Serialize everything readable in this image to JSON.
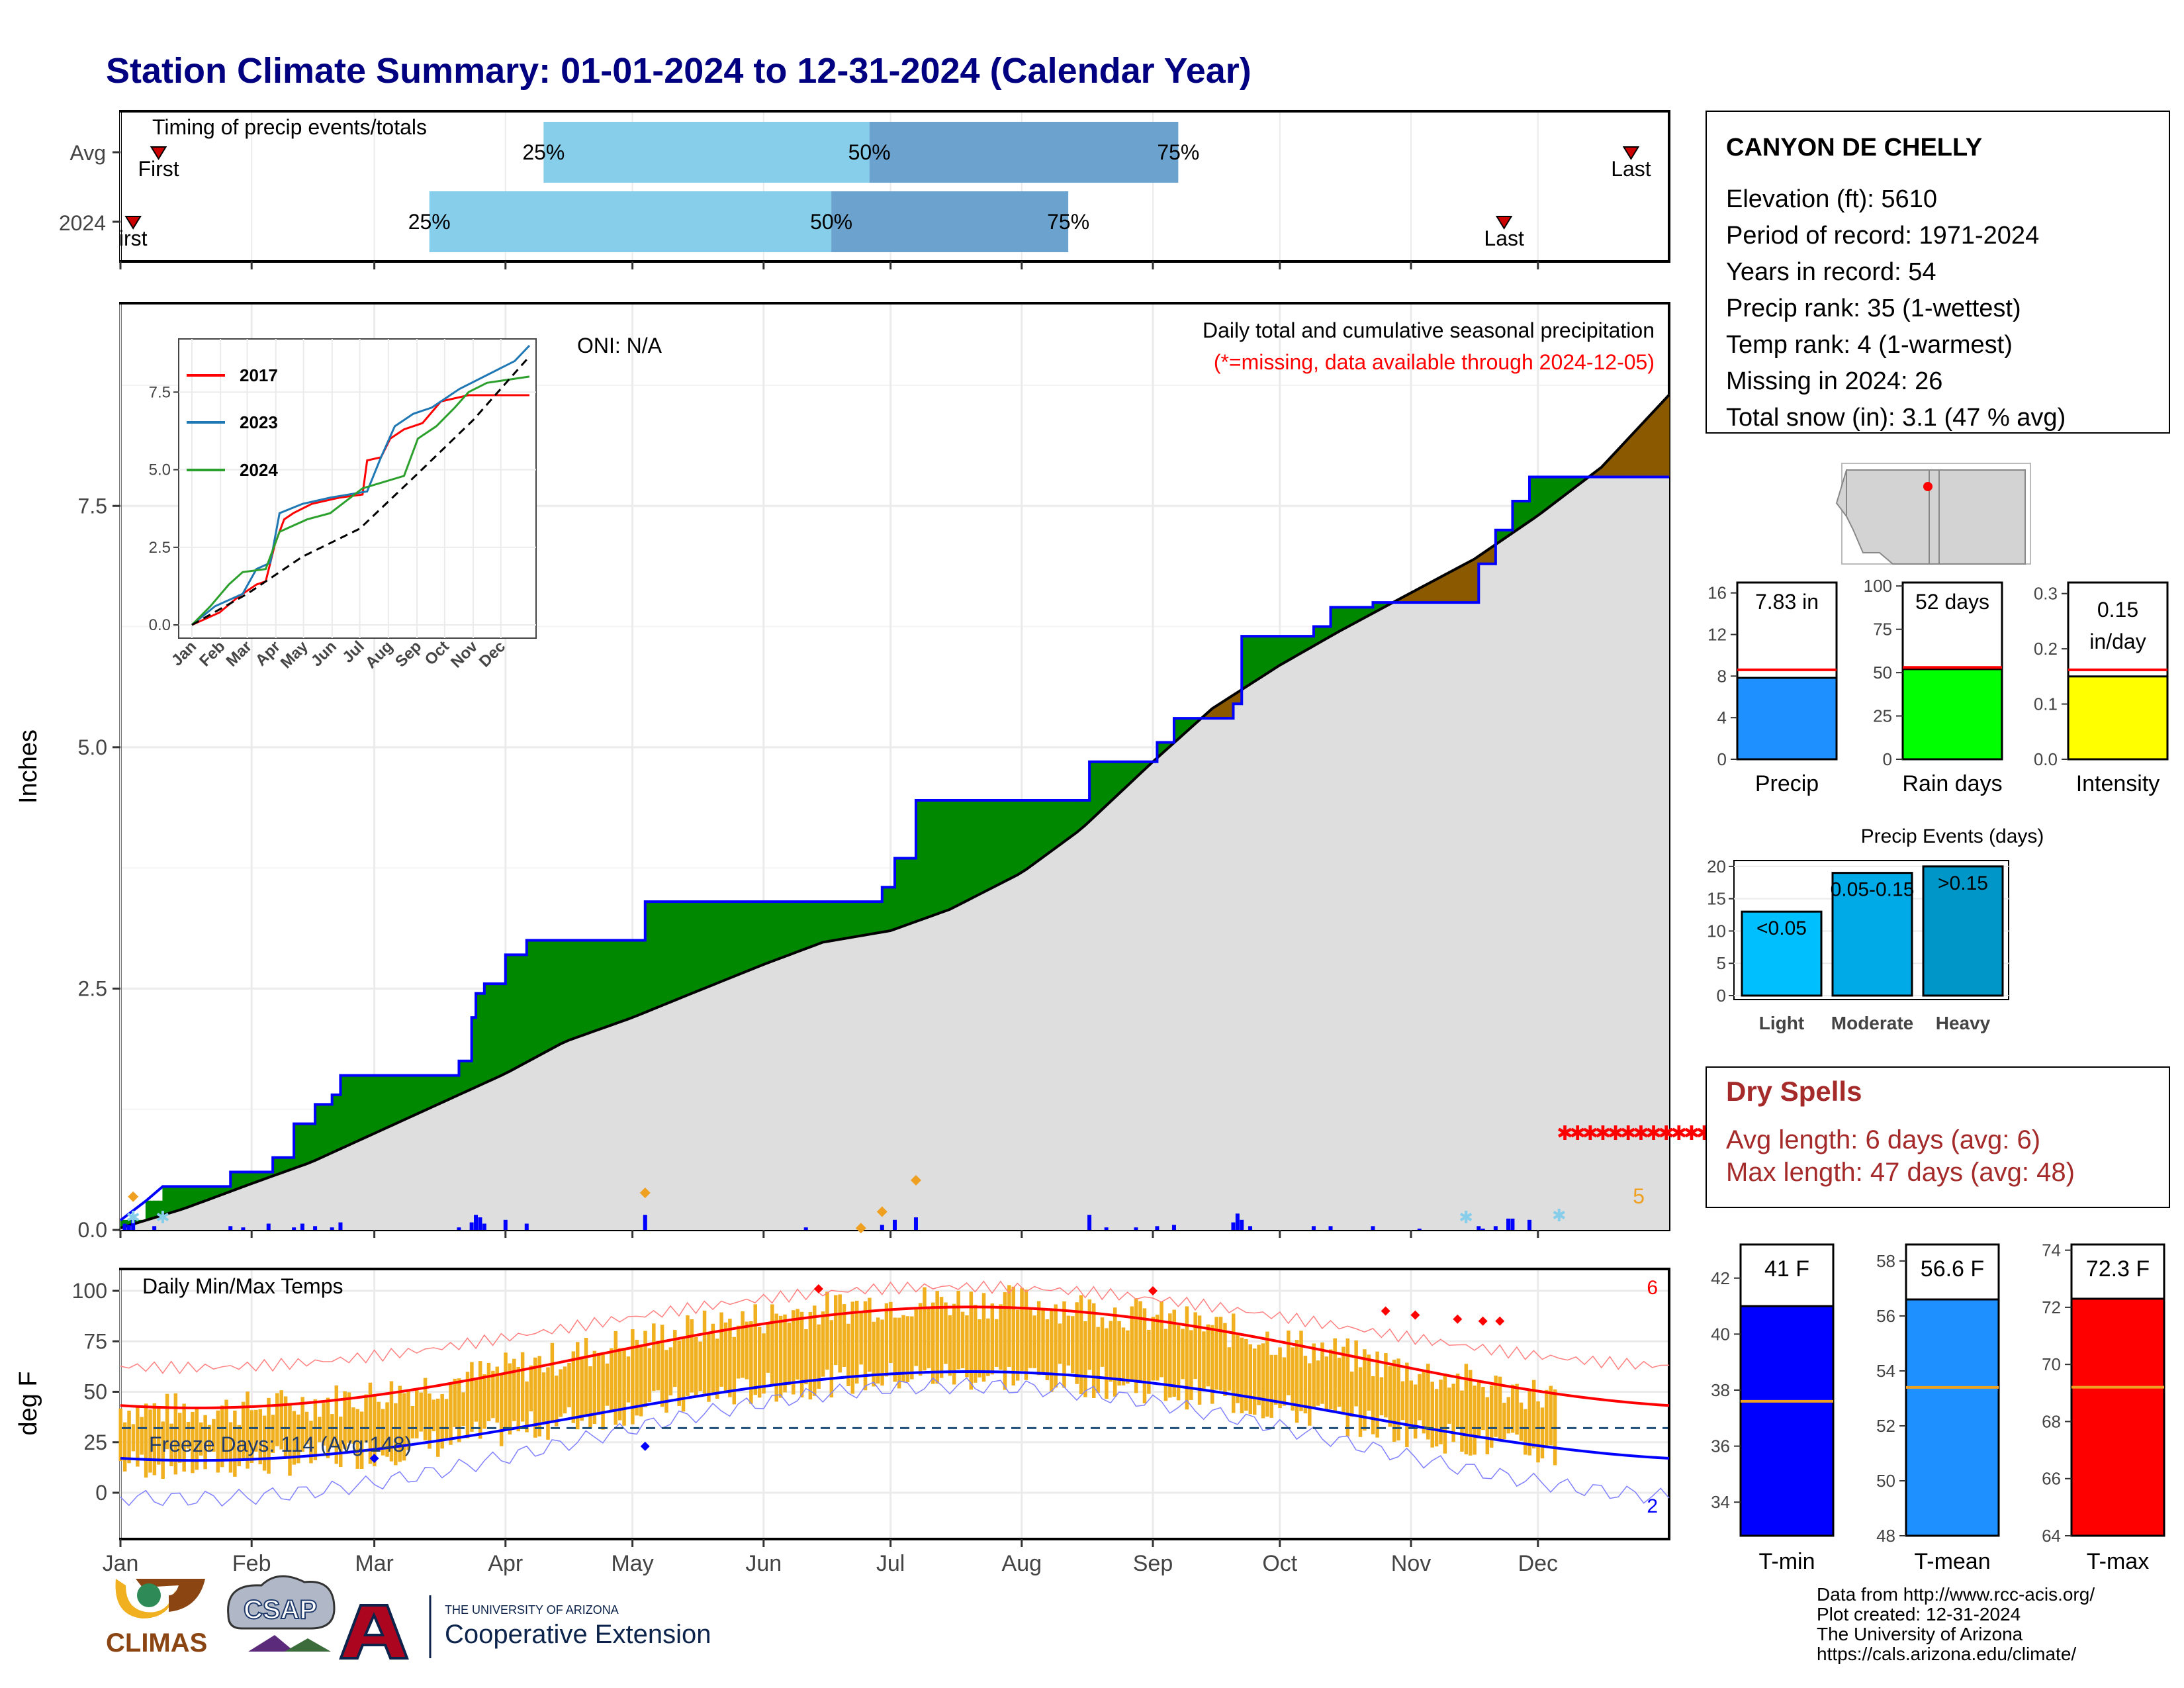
{
  "title": "Station Climate Summary: 01-01-2024 to 12-31-2024 (Calendar Year)",
  "months": [
    "Jan",
    "Feb",
    "Mar",
    "Apr",
    "May",
    "Jun",
    "Jul",
    "Aug",
    "Sep",
    "Oct",
    "Nov",
    "Dec"
  ],
  "colors": {
    "title": "#000080",
    "green": "#008800",
    "brown": "#8B5A00",
    "grey": "#DEDEDE",
    "blue": "#0000FF",
    "orange": "#F0B020",
    "red": "#FF0000",
    "lightblue": "#87CEEB",
    "midblue": "#6BA3CE",
    "dryred": "#A52A2A"
  },
  "timing": {
    "title": "Timing of precip events/totals",
    "rows": [
      {
        "label": "Avg",
        "first_doy": 9,
        "last_doy": 357,
        "p25": 100,
        "p50": 177,
        "p75": 250,
        "first_text": "First",
        "last_text": "Last"
      },
      {
        "label": "2024",
        "first_doy": 3,
        "last_doy": 327,
        "p25": 73,
        "p50": 168,
        "p75": 224,
        "first_text": "irst",
        "last_text": "Last"
      }
    ],
    "pct_labels": [
      "25%",
      "50%",
      "75%"
    ]
  },
  "station": {
    "name": "CANYON DE CHELLY",
    "lines": [
      "Elevation (ft): 5610",
      "Period of record: 1971-2024",
      "Years in record: 54",
      "Precip rank: 35 (1-wettest)",
      "Temp rank: 4 (1-warmest)",
      "Missing in 2024: 26",
      "Total snow (in): 3.1 (47 % avg)"
    ]
  },
  "precip_panel": {
    "ylabel": "Inches",
    "oni": "ONI: N/A",
    "header": "Daily total and cumulative seasonal precipitation",
    "missing_note": "(*=missing, data available through 2024-12-05)",
    "corner_number": "5"
  },
  "inset": {
    "legend": [
      {
        "name": "2017",
        "color": "#FF0000"
      },
      {
        "name": "2023",
        "color": "#1F77B4"
      },
      {
        "name": "2024",
        "color": "#2CA02C"
      }
    ],
    "yticks": [
      "0.0",
      "2.5",
      "5.0",
      "7.5"
    ]
  },
  "mini_bars": [
    {
      "label": "Precip",
      "value_text": "7.83 in",
      "value": 7.83,
      "avg": 8.6,
      "ymax": 17,
      "ticks": [
        0,
        4,
        8,
        12,
        16
      ],
      "color": "#1E90FF"
    },
    {
      "label": "Rain days",
      "value_text": "52 days",
      "value": 52,
      "avg": 53,
      "ymax": 102,
      "ticks": [
        0,
        25,
        50,
        75,
        100
      ],
      "color": "#00FF00"
    },
    {
      "label": "Intensity",
      "value_text": "0.15",
      "value_text2": "in/day",
      "value": 0.15,
      "avg": 0.162,
      "ymax": 0.32,
      "ticks": [
        "0.0",
        "0.1",
        "0.2",
        "0.3"
      ],
      "color": "#FFFF00"
    }
  ],
  "events": {
    "title": "Precip Events (days)",
    "bars": [
      {
        "label": "Light",
        "text": "<0.05",
        "value": 13,
        "color": "#00BFFF"
      },
      {
        "label": "Moderate",
        "text": "0.05-0.15",
        "value": 19,
        "color": "#00AAE6"
      },
      {
        "label": "Heavy",
        "text": ">0.15",
        "value": 20,
        "color": "#0096C8"
      }
    ],
    "yticks": [
      0,
      5,
      10,
      15,
      20
    ]
  },
  "dry_spells": {
    "title": "Dry Spells",
    "avg_line": "Avg length: 6 days (avg: 6)",
    "max_line": "Max length: 47 days (avg: 48)"
  },
  "temp_panel": {
    "ylabel": "deg F",
    "title": "Daily Min/Max Temps",
    "freeze": "Freeze Days: 114 (Avg:148)",
    "corner_top": "6",
    "corner_bottom": "2",
    "yticks": [
      0,
      25,
      50,
      75,
      100
    ]
  },
  "temp_bars": [
    {
      "label": "T-min",
      "value_text": "41 F",
      "value": 41,
      "avg": 37.6,
      "ymin": 32.8,
      "ymax": 43.2,
      "ticks": [
        34,
        36,
        38,
        40,
        42
      ],
      "color": "#0000FF"
    },
    {
      "label": "T-mean",
      "value_text": "56.6 F",
      "value": 56.6,
      "avg": 53.4,
      "ymin": 48,
      "ymax": 58.6,
      "ticks": [
        48,
        50,
        52,
        54,
        56,
        58
      ],
      "color": "#1E90FF"
    },
    {
      "label": "T-max",
      "value_text": "72.3 F",
      "value": 72.3,
      "avg": 69.2,
      "ymin": 64,
      "ymax": 74.2,
      "ticks": [
        64,
        66,
        68,
        70,
        72,
        74
      ],
      "color": "#FF0000"
    }
  ],
  "chart_data": {
    "type": "area",
    "title": "Daily total and cumulative seasonal precipitation",
    "ylabel": "Inches",
    "ylim": [
      0,
      9.6
    ],
    "x": [
      "Jan 1",
      "Jan 15",
      "Feb 1",
      "Feb 15",
      "Mar 1",
      "Mar 15",
      "Apr 1",
      "Apr 15",
      "May 1",
      "May 15",
      "Jun 1",
      "Jun 15",
      "Jul 1",
      "Jul 15",
      "Aug 1",
      "Aug 15",
      "Sep 1",
      "Sep 15",
      "Oct 1",
      "Oct 15",
      "Nov 1",
      "Nov 15",
      "Dec 1",
      "Dec 15",
      "Dec 31"
    ],
    "series": [
      {
        "name": "2024",
        "values": [
          0.1,
          0.45,
          0.75,
          1.4,
          1.6,
          2.5,
          2.95,
          2.95,
          3.4,
          3.4,
          3.4,
          3.4,
          4.4,
          4.4,
          4.85,
          5.2,
          6.2,
          6.3,
          6.45,
          6.45,
          7.7,
          7.8,
          7.8,
          7.8,
          7.8
        ]
      },
      {
        "values": [
          0.05,
          0.3,
          0.6,
          0.85,
          1.15,
          1.5,
          1.8,
          2.05,
          2.3,
          2.6,
          2.85,
          3.0,
          3.15,
          3.4,
          3.8,
          4.3,
          5.05,
          5.55,
          5.95,
          6.3,
          6.85,
          7.5,
          7.85,
          8.25,
          8.7
        ]
      }
    ],
    "legend": "none"
  }
}
